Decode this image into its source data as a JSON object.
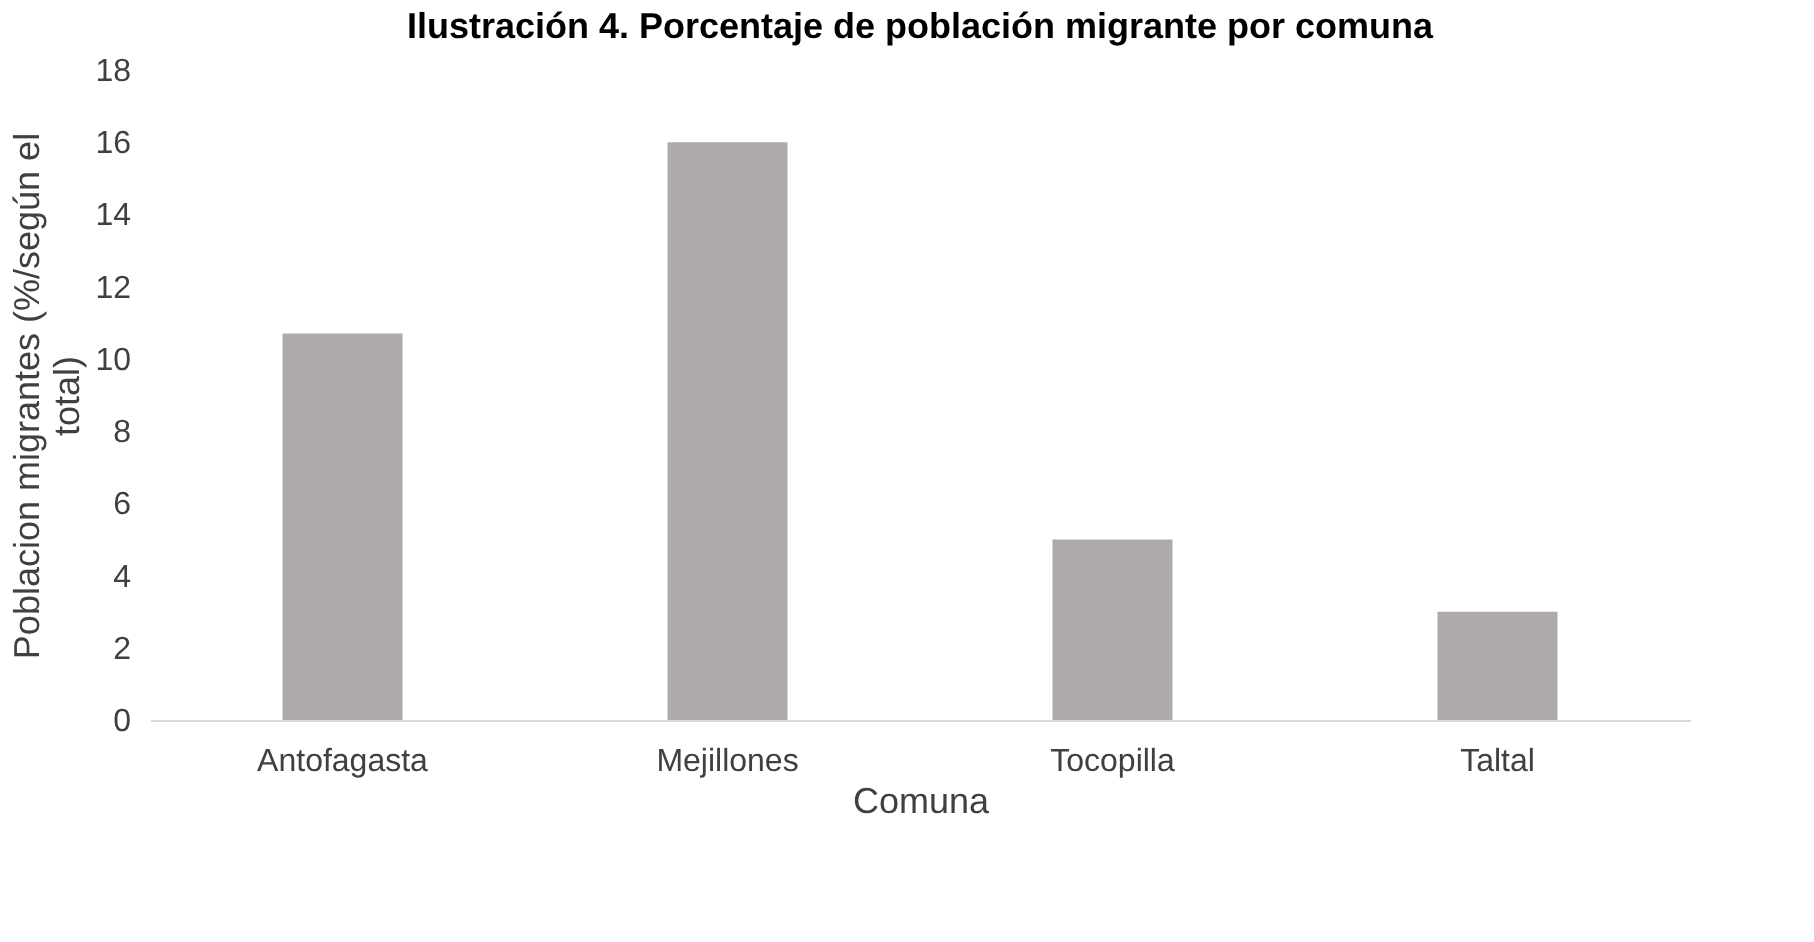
{
  "chart_data": {
    "type": "bar",
    "title": "Ilustración 4. Porcentaje de población migrante por comuna",
    "categories": [
      "Antofagasta",
      "Mejillones",
      "Tocopilla",
      "Taltal"
    ],
    "values": [
      10.7,
      16,
      5,
      3
    ],
    "color": "#aeaaaa",
    "xlabel": "Comuna",
    "ylabel": "Poblacion migrantes (%/según el\ntotal)",
    "ylim": [
      0,
      18
    ],
    "yticks": [
      0,
      2,
      4,
      6,
      8,
      10,
      12,
      14,
      16,
      18
    ],
    "grid": false
  }
}
